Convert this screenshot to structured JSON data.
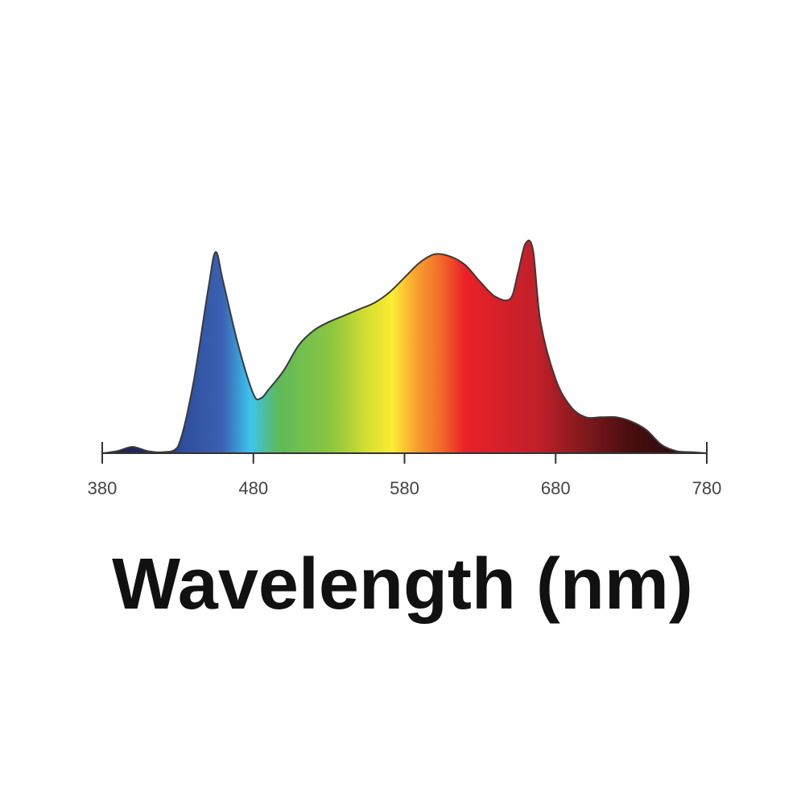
{
  "chart_data": {
    "type": "area",
    "x_label": "Wavelength (nm)",
    "x": [
      380,
      390,
      400,
      410,
      420,
      430,
      440,
      450,
      455,
      460,
      470,
      480,
      485,
      490,
      500,
      510,
      520,
      530,
      540,
      550,
      560,
      570,
      580,
      590,
      600,
      610,
      620,
      630,
      640,
      650,
      655,
      660,
      665,
      670,
      680,
      690,
      700,
      710,
      720,
      730,
      740,
      750,
      760,
      770,
      780
    ],
    "values": [
      0,
      1,
      3,
      1,
      0.5,
      3,
      32,
      77,
      95,
      81,
      51,
      28,
      26,
      30,
      39,
      51,
      58,
      62,
      65,
      68,
      71,
      76,
      83,
      90,
      94,
      93,
      89,
      81,
      74,
      73,
      85,
      99,
      96,
      62,
      35,
      22,
      17,
      17,
      17,
      15,
      11,
      4,
      1,
      0.5,
      0
    ],
    "xlim": [
      380,
      780
    ],
    "xticks": [
      380,
      480,
      580,
      680,
      780
    ],
    "ylim": [
      0,
      100
    ]
  }
}
